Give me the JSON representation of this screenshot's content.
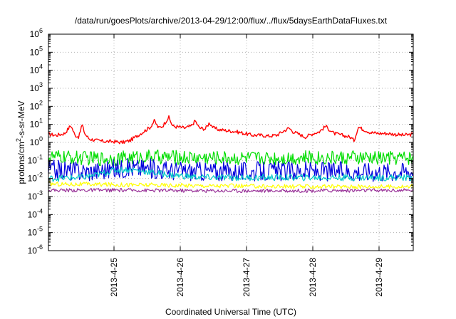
{
  "chart_data": {
    "type": "line",
    "title": "/data/run/goesPlots/archive/2013-04-29/12:00/flux/../flux/5daysEarthDataFluxes.txt",
    "xlabel": "Coordinated Universal Time (UTC)",
    "ylabel_parts": [
      "protons/cm",
      "2",
      "-s-sr-MeV"
    ],
    "y_scale": "log",
    "ylim_exponent": [
      -6,
      6
    ],
    "y_tick_exponents": [
      -6,
      -5,
      -4,
      -3,
      -2,
      -1,
      0,
      1,
      2,
      3,
      4,
      5,
      6
    ],
    "y_tick_base": "10",
    "x_ticks": [
      "2013-4-25",
      "2013-4-26",
      "2013-4-27",
      "2013-4-28",
      "2013-4-29"
    ],
    "x_range_days": [
      "2013-04-24 02:00",
      "2013-04-29 13:00"
    ],
    "grid": true,
    "series": [
      {
        "color": "#ff0000",
        "noise": 0.1,
        "points": [
          [
            0,
            0.45
          ],
          [
            0.2,
            0.4
          ],
          [
            0.4,
            0.5
          ],
          [
            0.55,
            0.95
          ],
          [
            0.65,
            0.4
          ],
          [
            0.75,
            0.3
          ],
          [
            0.82,
            1.0
          ],
          [
            0.9,
            0.45
          ],
          [
            1.0,
            0.2
          ],
          [
            1.2,
            0.1
          ],
          [
            1.4,
            0.05
          ],
          [
            1.6,
            0.05
          ],
          [
            1.8,
            0.0
          ],
          [
            2.0,
            0.1
          ],
          [
            2.2,
            0.4
          ],
          [
            2.4,
            0.7
          ],
          [
            2.5,
            0.85
          ],
          [
            2.6,
            1.2
          ],
          [
            2.7,
            0.8
          ],
          [
            2.8,
            0.9
          ],
          [
            2.95,
            1.4
          ],
          [
            3.05,
            0.9
          ],
          [
            3.2,
            0.85
          ],
          [
            3.35,
            0.8
          ],
          [
            3.5,
            0.9
          ],
          [
            3.6,
            1.2
          ],
          [
            3.7,
            0.8
          ],
          [
            3.85,
            0.75
          ],
          [
            3.95,
            1.1
          ],
          [
            4.05,
            0.8
          ],
          [
            4.2,
            0.7
          ],
          [
            4.4,
            0.65
          ],
          [
            4.6,
            0.6
          ],
          [
            4.8,
            0.5
          ],
          [
            5.0,
            0.4
          ],
          [
            5.2,
            0.4
          ],
          [
            5.4,
            0.35
          ],
          [
            5.6,
            0.4
          ],
          [
            5.75,
            0.6
          ],
          [
            5.9,
            0.8
          ],
          [
            6.0,
            0.6
          ],
          [
            6.1,
            0.5
          ],
          [
            6.2,
            0.4
          ],
          [
            6.3,
            0.3
          ],
          [
            6.4,
            0.4
          ],
          [
            6.5,
            0.5
          ],
          [
            6.65,
            0.6
          ],
          [
            6.8,
            0.9
          ],
          [
            6.9,
            0.7
          ],
          [
            7.0,
            0.5
          ],
          [
            7.2,
            0.4
          ],
          [
            7.4,
            0.3
          ],
          [
            7.5,
            0.1
          ],
          [
            7.6,
            0.85
          ],
          [
            7.75,
            0.7
          ],
          [
            7.9,
            0.55
          ],
          [
            8.1,
            0.5
          ],
          [
            8.3,
            0.5
          ],
          [
            8.5,
            0.45
          ],
          [
            8.7,
            0.4
          ],
          [
            8.95,
            0.45
          ]
        ]
      },
      {
        "color": "#00dd00",
        "noise": 0.4,
        "points": [
          [
            0,
            -0.8
          ],
          [
            1.0,
            -0.88
          ],
          [
            1.5,
            -0.9
          ],
          [
            2.0,
            -0.85
          ],
          [
            2.5,
            -0.8
          ],
          [
            3.0,
            -0.82
          ],
          [
            4.0,
            -0.85
          ],
          [
            5.0,
            -0.88
          ],
          [
            6.0,
            -0.85
          ],
          [
            7.0,
            -0.85
          ],
          [
            8.0,
            -0.87
          ],
          [
            8.95,
            -0.85
          ]
        ]
      },
      {
        "color": "#0000dd",
        "noise": 0.55,
        "points": [
          [
            0,
            -1.5
          ],
          [
            1.0,
            -1.6
          ],
          [
            1.5,
            -1.5
          ],
          [
            2.0,
            -1.4
          ],
          [
            2.5,
            -1.45
          ],
          [
            3.0,
            -1.55
          ],
          [
            4.0,
            -1.6
          ],
          [
            5.0,
            -1.62
          ],
          [
            6.0,
            -1.6
          ],
          [
            7.0,
            -1.6
          ],
          [
            8.0,
            -1.62
          ],
          [
            8.95,
            -1.6
          ]
        ]
      },
      {
        "color": "#00c8c8",
        "noise": 0.18,
        "points": [
          [
            0,
            -2.0
          ],
          [
            0.8,
            -1.95
          ],
          [
            1.2,
            -1.8
          ],
          [
            1.6,
            -1.55
          ],
          [
            2.0,
            -1.5
          ],
          [
            2.5,
            -1.65
          ],
          [
            3.0,
            -1.8
          ],
          [
            3.5,
            -1.9
          ],
          [
            4.0,
            -1.95
          ],
          [
            5.0,
            -1.95
          ],
          [
            6.0,
            -1.95
          ],
          [
            7.0,
            -1.95
          ],
          [
            8.0,
            -1.95
          ],
          [
            8.95,
            -1.95
          ]
        ]
      },
      {
        "color": "#ffff00",
        "noise": 0.12,
        "points": [
          [
            0,
            -2.3
          ],
          [
            2.0,
            -2.35
          ],
          [
            4.0,
            -2.4
          ],
          [
            6.0,
            -2.45
          ],
          [
            8.0,
            -2.45
          ],
          [
            8.95,
            -2.45
          ]
        ]
      },
      {
        "color": "#993399",
        "noise": 0.1,
        "points": [
          [
            0,
            -2.65
          ],
          [
            2.0,
            -2.65
          ],
          [
            4.0,
            -2.68
          ],
          [
            6.0,
            -2.68
          ],
          [
            8.0,
            -2.66
          ],
          [
            8.95,
            -2.66
          ]
        ]
      }
    ]
  }
}
